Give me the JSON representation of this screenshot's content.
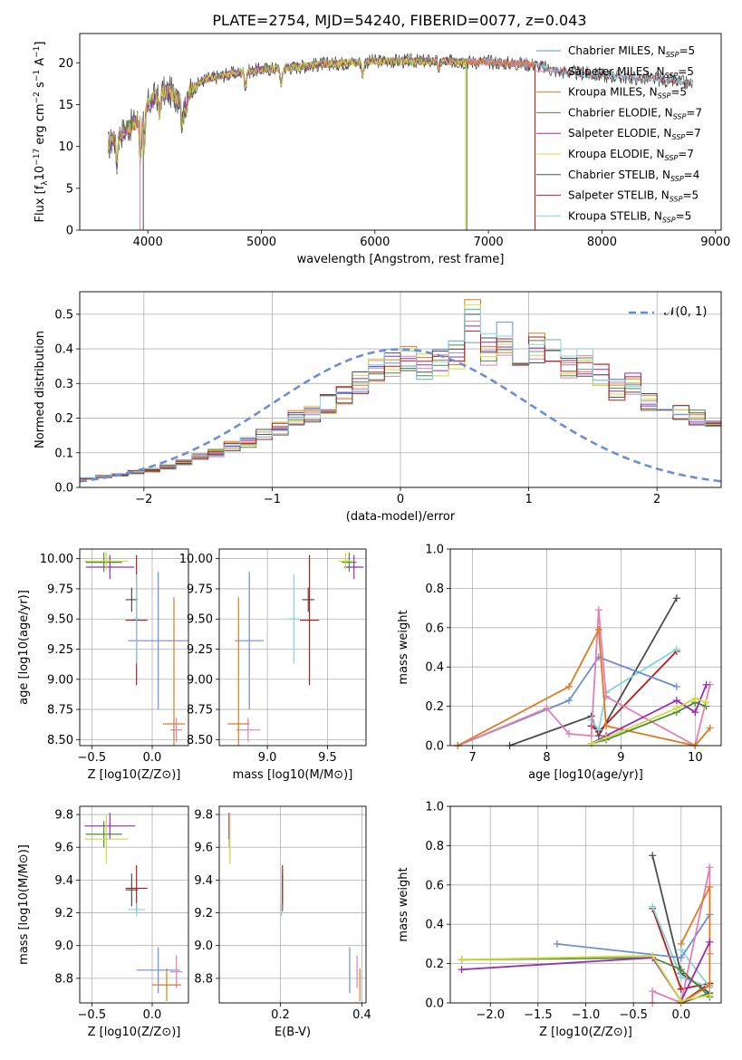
{
  "figure": {
    "title": "PLATE=2754, MJD=54240, FIBERID=0077, z=0.043"
  },
  "colors": {
    "Chabrier MILES": "#6c8ed6",
    "Salpeter MILES": "#e37fb3",
    "Kroupa MILES": "#de7b22",
    "Chabrier ELODIE": "#4a8c3c",
    "Salpeter ELODIE": "#9b2ab7",
    "Kroupa ELODIE": "#cddc39",
    "Chabrier STELIB": "#4d4d4d",
    "Salpeter STELIB": "#b71c1c",
    "Kroupa STELIB": "#83d3e0"
  },
  "chart_data": [
    {
      "id": "spectrum",
      "type": "line",
      "title": "PLATE=2754, MJD=54240, FIBERID=0077, z=0.043",
      "xlabel": "wavelength [Angstrom, rest frame]",
      "ylabel": "Flux [f_λ10^-17 erg cm^-2 s^-1 A^-1]",
      "xlim": [
        3400,
        9050
      ],
      "ylim": [
        0,
        23.5
      ],
      "xticks": [
        4000,
        5000,
        6000,
        7000,
        8000,
        9000
      ],
      "yticks": [
        0,
        5,
        10,
        15,
        20
      ],
      "grid": false,
      "legend_position": "right",
      "legend": [
        {
          "name": "Chabrier MILES",
          "nssp": "5"
        },
        {
          "name": "Salpeter MILES",
          "nssp": "5"
        },
        {
          "name": "Kroupa MILES",
          "nssp": "5"
        },
        {
          "name": "Chabrier ELODIE",
          "nssp": "7"
        },
        {
          "name": "Salpeter ELODIE",
          "nssp": "7"
        },
        {
          "name": "Kroupa ELODIE",
          "nssp": "7"
        },
        {
          "name": "Chabrier STELIB",
          "nssp": "4"
        },
        {
          "name": "Salpeter STELIB",
          "nssp": "5"
        },
        {
          "name": "Kroupa STELIB",
          "nssp": "5"
        }
      ],
      "continuum": {
        "x": [
          3650,
          3700,
          3800,
          3900,
          4000,
          4100,
          4200,
          4300,
          4400,
          4500,
          4700,
          5000,
          5300,
          5500,
          6000,
          6500,
          7000,
          7400,
          7600,
          8000,
          8500,
          8800
        ],
        "y": [
          10,
          11,
          12,
          13,
          15,
          16.5,
          16.5,
          15.5,
          17,
          18,
          18.6,
          19.2,
          19.5,
          19.8,
          20.2,
          20.2,
          20.1,
          19.8,
          19.0,
          18.5,
          18.0,
          17.5
        ]
      },
      "features": {
        "x": [
          3727,
          3934,
          3968,
          4102,
          4304,
          4340,
          4861,
          5175,
          5893,
          6563
        ],
        "depth": [
          0.3,
          0.35,
          0.32,
          0.15,
          0.2,
          0.12,
          0.1,
          0.1,
          0.08,
          0.05
        ]
      },
      "drops": [
        {
          "series": "Salpeter MILES",
          "x": 3930
        },
        {
          "series": "Chabrier STELIB",
          "x": 3960
        },
        {
          "series": "Kroupa ELODIE",
          "x": 6800
        },
        {
          "series": "Chabrier ELODIE",
          "x": 6810
        },
        {
          "series": "Salpeter STELIB",
          "x": 7410
        }
      ],
      "series_xmax": {
        "MILES": 7410,
        "ELODIE": 6810,
        "STELIB": 8800
      }
    },
    {
      "id": "residual-histogram",
      "type": "bar",
      "xlabel": "(data-model)/error",
      "ylabel": "Normed distribution",
      "xlim": [
        -2.5,
        2.5
      ],
      "ylim": [
        0,
        0.565
      ],
      "xticks": [
        -2,
        -1,
        0,
        1,
        2
      ],
      "yticks": [
        0.0,
        0.1,
        0.2,
        0.3,
        0.4,
        0.5
      ],
      "grid": true,
      "legend_position": "top-right",
      "reference_curve": {
        "name": "𝒩(0, 1)",
        "mean": 0,
        "sigma": 1
      },
      "bin_width": 0.125,
      "bin_start": -2.5,
      "typical_profile": [
        0.027,
        0.032,
        0.037,
        0.045,
        0.05,
        0.058,
        0.072,
        0.09,
        0.1,
        0.12,
        0.13,
        0.15,
        0.17,
        0.2,
        0.21,
        0.24,
        0.26,
        0.3,
        0.34,
        0.36,
        0.38,
        0.35,
        0.36,
        0.38,
        0.46,
        0.4,
        0.43,
        0.38,
        0.4,
        0.39,
        0.34,
        0.36,
        0.32,
        0.28,
        0.3,
        0.25,
        0.22,
        0.22,
        0.2,
        0.18,
        0.15,
        0.13,
        0.1,
        0.08,
        0.07,
        0.06,
        0.05,
        0.045,
        0.04,
        0.035
      ]
    },
    {
      "id": "age-vs-Z",
      "type": "scatter",
      "xlabel": "Z [log10(Z/Z⊙)]",
      "ylabel": "age  [log10(age/yr)]",
      "xlim": [
        -0.6,
        0.3
      ],
      "ylim": [
        8.45,
        10.08
      ],
      "xticks": [
        -0.5,
        0.0
      ],
      "yticks": [
        8.5,
        8.75,
        9.0,
        9.25,
        9.5,
        9.75,
        10.0
      ],
      "grid": true,
      "points": [
        {
          "series": "Chabrier MILES",
          "x": 0.05,
          "xerr": 0.25,
          "y": 9.32,
          "yerr": 0.57
        },
        {
          "series": "Salpeter MILES",
          "x": 0.2,
          "xerr": 0.05,
          "y": 8.58,
          "yerr": 0.1
        },
        {
          "series": "Kroupa MILES",
          "x": 0.18,
          "xerr": 0.09,
          "y": 8.63,
          "yerr": 1.05
        },
        {
          "series": "Chabrier ELODIE",
          "x": -0.4,
          "xerr": 0.15,
          "y": 9.97,
          "yerr": 0.08
        },
        {
          "series": "Salpeter ELODIE",
          "x": -0.35,
          "xerr": 0.2,
          "y": 9.93,
          "yerr": 0.1
        },
        {
          "series": "Kroupa ELODIE",
          "x": -0.38,
          "xerr": 0.18,
          "y": 9.98,
          "yerr": 0.07
        },
        {
          "series": "Chabrier STELIB",
          "x": -0.17,
          "xerr": 0.05,
          "y": 9.66,
          "yerr": 0.1
        },
        {
          "series": "Salpeter STELIB",
          "x": -0.13,
          "xerr": 0.09,
          "y": 9.49,
          "yerr": 0.54
        },
        {
          "series": "Kroupa STELIB",
          "x": -0.13,
          "xerr": 0.03,
          "y": 9.5,
          "yerr": 0.37
        }
      ]
    },
    {
      "id": "age-vs-mass",
      "type": "scatter",
      "xlabel": "mass [log10(M/M⊙)]",
      "ylabel": "",
      "xlim": [
        8.6,
        9.82
      ],
      "ylim": [
        8.45,
        10.08
      ],
      "xticks": [
        9.0,
        9.5
      ],
      "yticks": [
        8.5,
        8.75,
        9.0,
        9.25,
        9.5,
        9.75,
        10.0
      ],
      "grid": true,
      "points": [
        {
          "series": "Chabrier MILES",
          "x": 8.85,
          "xerr": 0.12,
          "y": 9.32,
          "yerr": 0.57
        },
        {
          "series": "Salpeter MILES",
          "x": 8.84,
          "xerr": 0.1,
          "y": 8.58,
          "yerr": 0.1
        },
        {
          "series": "Kroupa MILES",
          "x": 8.76,
          "xerr": 0.09,
          "y": 8.63,
          "yerr": 1.05
        },
        {
          "series": "Chabrier ELODIE",
          "x": 9.68,
          "xerr": 0.06,
          "y": 9.97,
          "yerr": 0.08
        },
        {
          "series": "Salpeter ELODIE",
          "x": 9.72,
          "xerr": 0.08,
          "y": 9.93,
          "yerr": 0.1
        },
        {
          "series": "Kroupa ELODIE",
          "x": 9.65,
          "xerr": 0.06,
          "y": 9.98,
          "yerr": 0.07
        },
        {
          "series": "Chabrier STELIB",
          "x": 9.34,
          "xerr": 0.05,
          "y": 9.66,
          "yerr": 0.1
        },
        {
          "series": "Salpeter STELIB",
          "x": 9.35,
          "xerr": 0.08,
          "y": 9.49,
          "yerr": 0.54
        },
        {
          "series": "Kroupa STELIB",
          "x": 9.22,
          "xerr": 0.05,
          "y": 9.5,
          "yerr": 0.37
        }
      ]
    },
    {
      "id": "weight-vs-age",
      "type": "line",
      "xlabel": "age  [log10(age/yr)]",
      "ylabel": "mass weight",
      "xlim": [
        6.7,
        10.35
      ],
      "ylim": [
        0,
        1.0
      ],
      "xticks": [
        7,
        8,
        9,
        10
      ],
      "yticks": [
        0.0,
        0.2,
        0.4,
        0.6,
        0.8,
        1.0
      ],
      "grid": true,
      "series": [
        {
          "name": "Chabrier STELIB",
          "x": [
            7.5,
            8.6,
            8.7,
            9.75
          ],
          "y": [
            0.0,
            0.15,
            0.05,
            0.75
          ]
        },
        {
          "name": "Salpeter STELIB",
          "x": [
            8.6,
            8.7,
            9.75
          ],
          "y": [
            0.1,
            0.07,
            0.48
          ]
        },
        {
          "name": "Kroupa STELIB",
          "x": [
            8.6,
            8.7,
            8.8,
            9.75
          ],
          "y": [
            0.13,
            0.08,
            0.27,
            0.49
          ]
        },
        {
          "name": "Chabrier MILES",
          "x": [
            6.8,
            8.3,
            8.7,
            9.75
          ],
          "y": [
            0.0,
            0.23,
            0.45,
            0.3
          ]
        },
        {
          "name": "Salpeter MILES",
          "x": [
            6.8,
            8.0,
            8.3,
            8.6,
            8.7,
            8.8,
            10.0,
            10.2
          ],
          "y": [
            0.0,
            0.19,
            0.06,
            0.05,
            0.69,
            0.25,
            0.0,
            0.31
          ]
        },
        {
          "name": "Kroupa MILES",
          "x": [
            6.8,
            8.3,
            8.7,
            8.8,
            10.0,
            10.2
          ],
          "y": [
            0.0,
            0.3,
            0.59,
            0.1,
            0.0,
            0.09
          ]
        },
        {
          "name": "Chabrier ELODIE",
          "x": [
            8.6,
            8.8,
            9.75,
            10.0,
            10.15
          ],
          "y": [
            0.01,
            0.03,
            0.17,
            0.22,
            0.2
          ]
        },
        {
          "name": "Salpeter ELODIE",
          "x": [
            8.6,
            8.8,
            9.75,
            10.0,
            10.15
          ],
          "y": [
            0.01,
            0.05,
            0.23,
            0.17,
            0.31
          ]
        },
        {
          "name": "Kroupa ELODIE",
          "x": [
            8.6,
            8.8,
            9.75,
            10.0,
            10.15
          ],
          "y": [
            0.01,
            0.04,
            0.19,
            0.24,
            0.22
          ]
        }
      ]
    },
    {
      "id": "mass-vs-Z",
      "type": "scatter",
      "xlabel": "Z [log10(Z/Z⊙)]",
      "ylabel": "mass [log10(M/M⊙)]",
      "xlim": [
        -0.6,
        0.3
      ],
      "ylim": [
        8.65,
        9.85
      ],
      "xticks": [
        -0.5,
        0.0
      ],
      "yticks": [
        8.8,
        9.0,
        9.2,
        9.4,
        9.6,
        9.8
      ],
      "grid": true,
      "points": [
        {
          "series": "Chabrier MILES",
          "x": 0.05,
          "xerr": 0.18,
          "y": 8.85,
          "yerr": 0.14
        },
        {
          "series": "Salpeter MILES",
          "x": 0.2,
          "xerr": 0.05,
          "y": 8.84,
          "yerr": 0.1
        },
        {
          "series": "Kroupa MILES",
          "x": 0.12,
          "xerr": 0.12,
          "y": 8.76,
          "yerr": 0.1
        },
        {
          "series": "Chabrier ELODIE",
          "x": -0.4,
          "xerr": 0.15,
          "y": 9.68,
          "yerr": 0.08
        },
        {
          "series": "Salpeter ELODIE",
          "x": -0.35,
          "xerr": 0.21,
          "y": 9.73,
          "yerr": 0.08
        },
        {
          "series": "Kroupa ELODIE",
          "x": -0.38,
          "xerr": 0.18,
          "y": 9.65,
          "yerr": 0.15
        },
        {
          "series": "Chabrier STELIB",
          "x": -0.17,
          "xerr": 0.05,
          "y": 9.34,
          "yerr": 0.1
        },
        {
          "series": "Salpeter STELIB",
          "x": -0.13,
          "xerr": 0.09,
          "y": 9.35,
          "yerr": 0.14
        },
        {
          "series": "Kroupa STELIB",
          "x": -0.13,
          "xerr": 0.07,
          "y": 9.22,
          "yerr": 0.04
        }
      ]
    },
    {
      "id": "mass-vs-EBV",
      "type": "scatter",
      "xlabel": "E(B-V)",
      "ylabel": "",
      "xlim": [
        0.05,
        0.41
      ],
      "ylim": [
        8.65,
        9.85
      ],
      "xticks": [
        0.2,
        0.4
      ],
      "yticks": [
        8.8,
        9.0,
        9.2,
        9.4,
        9.6,
        9.8
      ],
      "grid": true,
      "points": [
        {
          "series": "Chabrier MILES",
          "x": 0.37,
          "xerr": 0.0,
          "y": 8.85,
          "yerr": 0.14
        },
        {
          "series": "Salpeter MILES",
          "x": 0.388,
          "xerr": 0.0,
          "y": 8.84,
          "yerr": 0.1
        },
        {
          "series": "Kroupa MILES",
          "x": 0.395,
          "xerr": 0.0,
          "y": 8.76,
          "yerr": 0.1
        },
        {
          "series": "Chabrier ELODIE",
          "x": 0.075,
          "xerr": 0.0,
          "y": 9.68,
          "yerr": 0.08
        },
        {
          "series": "Salpeter ELODIE",
          "x": 0.074,
          "xerr": 0.0,
          "y": 9.73,
          "yerr": 0.08
        },
        {
          "series": "Kroupa ELODIE",
          "x": 0.076,
          "xerr": 0.0,
          "y": 9.65,
          "yerr": 0.15
        },
        {
          "series": "Chabrier STELIB",
          "x": 0.205,
          "xerr": 0.0,
          "y": 9.34,
          "yerr": 0.1
        },
        {
          "series": "Salpeter STELIB",
          "x": 0.205,
          "xerr": 0.0,
          "y": 9.35,
          "yerr": 0.14
        },
        {
          "series": "Kroupa STELIB",
          "x": 0.203,
          "xerr": 0.0,
          "y": 9.22,
          "yerr": 0.04
        }
      ]
    },
    {
      "id": "weight-vs-Z",
      "type": "line",
      "xlabel": "Z [log10(Z/Z⊙)]",
      "ylabel": "mass weight",
      "xlim": [
        -2.42,
        0.42
      ],
      "ylim": [
        0,
        1.0
      ],
      "xticks": [
        -2.0,
        -1.5,
        -1.0,
        -0.5,
        0.0
      ],
      "yticks": [
        0.0,
        0.2,
        0.4,
        0.6,
        0.8,
        1.0
      ],
      "grid": true,
      "series": [
        {
          "name": "Chabrier STELIB",
          "x": [
            -0.3,
            0.0,
            0.3,
            0.0
          ],
          "y": [
            0.75,
            0.15,
            0.05,
            0.0
          ]
        },
        {
          "name": "Salpeter STELIB",
          "x": [
            -0.3,
            0.0,
            0.3,
            0.0
          ],
          "y": [
            0.48,
            0.07,
            0.1,
            0.0
          ]
        },
        {
          "name": "Kroupa STELIB",
          "x": [
            -0.3,
            0.0,
            0.3,
            0.0
          ],
          "y": [
            0.49,
            0.13,
            0.08,
            0.27
          ]
        },
        {
          "name": "Chabrier MILES",
          "x": [
            -1.3,
            0.0,
            0.3
          ],
          "y": [
            0.3,
            0.23,
            0.45
          ]
        },
        {
          "name": "Salpeter MILES",
          "x": [
            -0.3,
            -0.3,
            0.0,
            0.3,
            0.3
          ],
          "y": [
            0.0,
            0.06,
            0.0,
            0.69,
            0.25
          ]
        },
        {
          "name": "Kroupa MILES",
          "x": [
            0.0,
            0.3,
            0.3,
            0.0
          ],
          "y": [
            0.3,
            0.59,
            0.09,
            0.0
          ]
        },
        {
          "name": "Chabrier ELODIE",
          "x": [
            -2.3,
            -0.3,
            0.0,
            0.3
          ],
          "y": [
            0.22,
            0.23,
            0.17,
            0.03
          ]
        },
        {
          "name": "Salpeter ELODIE",
          "x": [
            -2.3,
            -0.3,
            0.0,
            0.3
          ],
          "y": [
            0.17,
            0.23,
            0.01,
            0.31
          ]
        },
        {
          "name": "Kroupa ELODIE",
          "x": [
            -2.3,
            -0.3,
            0.0,
            0.3
          ],
          "y": [
            0.22,
            0.24,
            0.01,
            0.04
          ]
        }
      ]
    }
  ]
}
